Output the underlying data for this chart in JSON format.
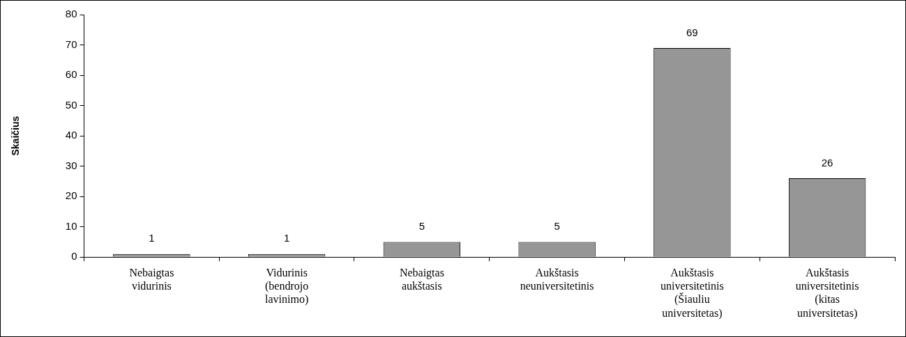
{
  "chart_data": {
    "type": "bar",
    "ylabel": "Skaičius",
    "categories": [
      "Nebaigtas vidurinis",
      "Vidurinis (bendrojo lavinimo)",
      "Nebaigtas aukštasis",
      "Aukštasis neuniversitetinis",
      "Aukštasis universitetinis (Šiauliu universitetas)",
      "Aukštasis universitetinis (kitas universitetas)"
    ],
    "values": [
      1,
      1,
      5,
      5,
      69,
      26
    ],
    "color": "#969696",
    "ylim": [
      0,
      80
    ],
    "yticks": [
      0,
      10,
      20,
      30,
      40,
      50,
      60,
      70,
      80
    ],
    "grid": false,
    "legend": false,
    "data_labels": true
  }
}
